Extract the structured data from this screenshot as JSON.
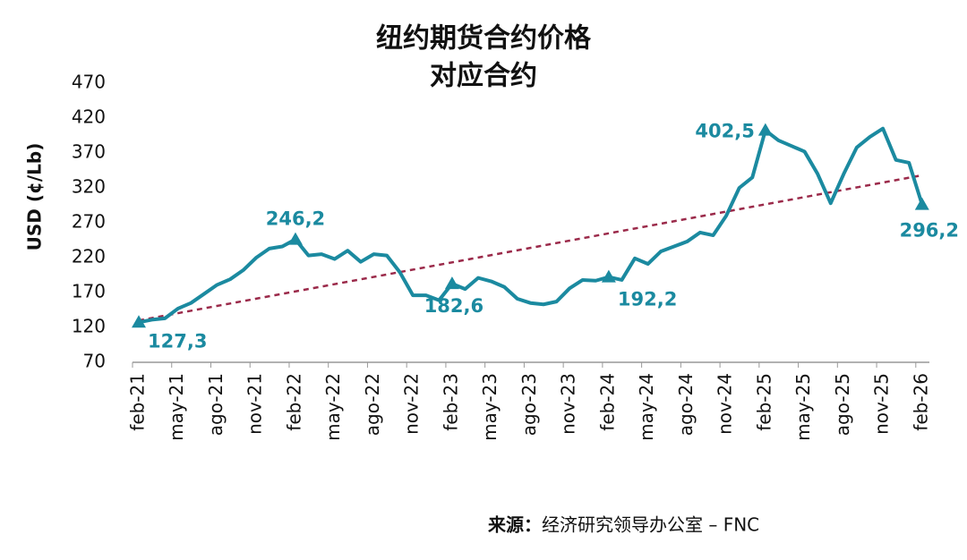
{
  "chart_data": {
    "type": "line",
    "title": [
      "纽约期货合约价格",
      "对应合约"
    ],
    "y_label": "USD (¢/Lb)",
    "source_label": "来源：",
    "source": "经济研究领导办公室 – FNC",
    "categories": [
      "feb-21",
      null,
      null,
      "may-21",
      null,
      null,
      "ago-21",
      null,
      null,
      "nov-21",
      null,
      null,
      "feb-22",
      null,
      null,
      "may-22",
      null,
      null,
      "ago-22",
      null,
      null,
      "nov-22",
      null,
      null,
      "feb-23",
      null,
      null,
      "may-23",
      null,
      null,
      "ago-23",
      null,
      null,
      "nov-23",
      null,
      null,
      "feb-24",
      null,
      null,
      "may-24",
      null,
      null,
      "ago-24",
      null,
      null,
      "nov-24",
      null,
      null,
      "feb-25",
      null,
      null,
      "may-25",
      null,
      null,
      "ago-25",
      null,
      null,
      "nov-25",
      null,
      null,
      "feb-26"
    ],
    "series": [
      {
        "color": "#1b8aa0",
        "values": [
          127.3,
          131,
          133,
          147,
          155,
          168,
          181,
          189,
          202,
          220,
          233,
          236,
          246.2,
          223,
          225,
          218,
          230,
          214,
          225,
          223,
          199,
          166,
          166,
          159,
          182.6,
          175,
          191,
          186,
          178,
          161,
          155,
          153,
          157,
          176,
          188,
          187,
          192.2,
          188,
          219,
          211,
          229,
          236,
          243,
          256,
          252,
          280,
          320,
          335,
          402.5,
          388,
          380,
          372,
          340,
          298,
          340,
          378,
          393,
          405,
          360,
          356,
          296.2
        ],
        "value_labels": [
          "127,3",
          null,
          null,
          null,
          null,
          null,
          null,
          null,
          null,
          null,
          null,
          null,
          "246,2",
          null,
          null,
          null,
          null,
          null,
          null,
          null,
          null,
          null,
          null,
          null,
          "182,6",
          null,
          null,
          null,
          null,
          null,
          null,
          null,
          null,
          null,
          null,
          null,
          "192,2",
          null,
          null,
          null,
          null,
          null,
          null,
          null,
          null,
          null,
          null,
          null,
          "402,5",
          null,
          null,
          null,
          null,
          null,
          null,
          null,
          null,
          null,
          null,
          null,
          "296,2"
        ]
      }
    ],
    "trend": {
      "color": "#9b2a4a",
      "values": [
        130,
        338
      ]
    },
    "ylim": [
      70,
      470
    ],
    "yticks": [
      70,
      120,
      170,
      220,
      270,
      320,
      370,
      420,
      470
    ]
  }
}
